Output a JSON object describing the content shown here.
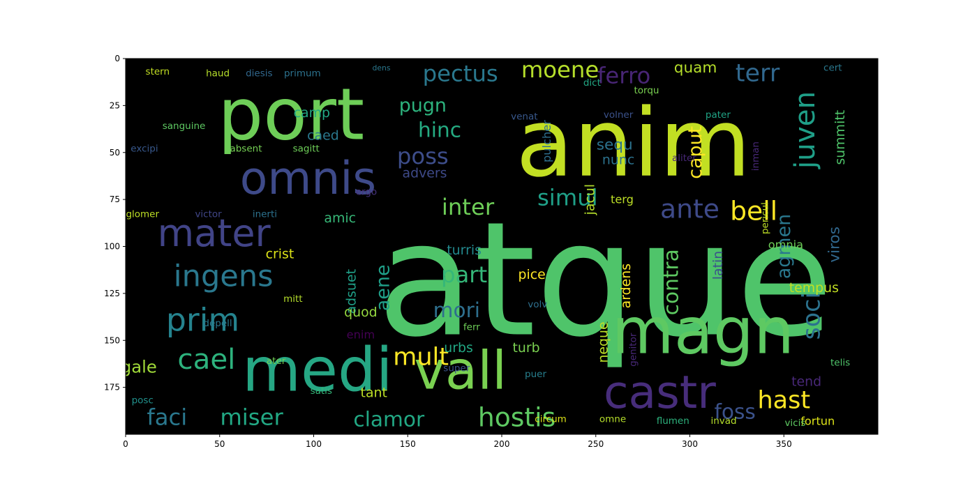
{
  "chart_data": {
    "type": "image",
    "x": {
      "lim": [
        0,
        400
      ],
      "ticks": [
        0,
        50,
        100,
        150,
        200,
        250,
        300,
        350
      ]
    },
    "y": {
      "lim": [
        0,
        200
      ],
      "inverted": true,
      "ticks": [
        0,
        25,
        50,
        75,
        100,
        125,
        150,
        175
      ]
    },
    "background": "#000000",
    "colormap": "viridis",
    "words": [
      {
        "text": "atque",
        "x": 255,
        "y": 118,
        "size": 84,
        "color": "#4fc46a"
      },
      {
        "text": "anim",
        "x": 270,
        "y": 45,
        "size": 50,
        "color": "#c2df23"
      },
      {
        "text": "port",
        "x": 88,
        "y": 30,
        "size": 38,
        "color": "#6ece58"
      },
      {
        "text": "medi",
        "x": 102,
        "y": 166,
        "size": 32,
        "color": "#26a784"
      },
      {
        "text": "magn",
        "x": 307,
        "y": 145,
        "size": 34,
        "color": "#5ec962"
      },
      {
        "text": "vall",
        "x": 178,
        "y": 166,
        "size": 28,
        "color": "#7ad151"
      },
      {
        "text": "castr",
        "x": 284,
        "y": 178,
        "size": 24,
        "color": "#472d7b"
      },
      {
        "text": "omnis",
        "x": 97,
        "y": 64,
        "size": 24,
        "color": "#3e4a89"
      },
      {
        "text": "mater",
        "x": 47,
        "y": 93,
        "size": 20,
        "color": "#414487"
      },
      {
        "text": "ingens",
        "x": 52,
        "y": 116,
        "size": 16,
        "color": "#2a788e"
      },
      {
        "text": "prim",
        "x": 41,
        "y": 139,
        "size": 17,
        "color": "#25838e"
      },
      {
        "text": "cael",
        "x": 43,
        "y": 160,
        "size": 15,
        "color": "#2db27d"
      },
      {
        "text": "faci",
        "x": 22,
        "y": 191,
        "size": 12,
        "color": "#2a788e"
      },
      {
        "text": "miser",
        "x": 67,
        "y": 191,
        "size": 12,
        "color": "#22a884"
      },
      {
        "text": "gale",
        "x": 7,
        "y": 164,
        "size": 9,
        "color": "#a0da39"
      },
      {
        "text": "posc",
        "x": 9,
        "y": 182,
        "size": 5,
        "color": "#21918c"
      },
      {
        "text": "glomer",
        "x": 9,
        "y": 83,
        "size": 5,
        "color": "#bddf26"
      },
      {
        "text": "victor",
        "x": 44,
        "y": 83,
        "size": 5,
        "color": "#404688"
      },
      {
        "text": "stern",
        "x": 17,
        "y": 7,
        "size": 5,
        "color": "#c2df23"
      },
      {
        "text": "haud",
        "x": 49,
        "y": 8,
        "size": 5,
        "color": "#b5de2b"
      },
      {
        "text": "diesis",
        "x": 71,
        "y": 8,
        "size": 5,
        "color": "#31688e"
      },
      {
        "text": "primum",
        "x": 94,
        "y": 8,
        "size": 5,
        "color": "#2c728e"
      },
      {
        "text": "sanguine",
        "x": 31,
        "y": 36,
        "size": 5,
        "color": "#5ec962"
      },
      {
        "text": "excipi",
        "x": 10,
        "y": 48,
        "size": 5,
        "color": "#38588c"
      },
      {
        "text": "absent",
        "x": 64,
        "y": 48,
        "size": 5,
        "color": "#75d054"
      },
      {
        "text": "sagitt",
        "x": 96,
        "y": 48,
        "size": 5,
        "color": "#6ece58"
      },
      {
        "text": "inerti",
        "x": 74,
        "y": 83,
        "size": 5,
        "color": "#2c728e"
      },
      {
        "text": "amic",
        "x": 114,
        "y": 85,
        "size": 7,
        "color": "#37b878"
      },
      {
        "text": "ergo",
        "x": 128,
        "y": 71,
        "size": 5,
        "color": "#46337e"
      },
      {
        "text": "caed",
        "x": 105,
        "y": 41,
        "size": 7,
        "color": "#2a788e"
      },
      {
        "text": "camp",
        "x": 99,
        "y": 29,
        "size": 7,
        "color": "#22a884"
      },
      {
        "text": "crist",
        "x": 82,
        "y": 104,
        "size": 7,
        "color": "#dde318"
      },
      {
        "text": "adsuet",
        "x": 120,
        "y": 124,
        "size": 7,
        "color": "#1fa088",
        "rotate": -90
      },
      {
        "text": "aene",
        "x": 137,
        "y": 122,
        "size": 10,
        "color": "#1f9f88",
        "rotate": -90
      },
      {
        "text": "quod",
        "x": 125,
        "y": 135,
        "size": 7,
        "color": "#95d840"
      },
      {
        "text": "enim",
        "x": 125,
        "y": 147,
        "size": 6,
        "color": "#440154"
      },
      {
        "text": "ater",
        "x": 80,
        "y": 161,
        "size": 5,
        "color": "#75d054"
      },
      {
        "text": "depell",
        "x": 49,
        "y": 141,
        "size": 5,
        "color": "#2a788e"
      },
      {
        "text": "mitt",
        "x": 89,
        "y": 128,
        "size": 5,
        "color": "#b5de2b"
      },
      {
        "text": "satis",
        "x": 104,
        "y": 177,
        "size": 5,
        "color": "#35b779"
      },
      {
        "text": "tant",
        "x": 132,
        "y": 178,
        "size": 7,
        "color": "#bddf26"
      },
      {
        "text": "mult",
        "x": 157,
        "y": 159,
        "size": 13,
        "color": "#fde725"
      },
      {
        "text": "clamor",
        "x": 140,
        "y": 192,
        "size": 11,
        "color": "#22a884"
      },
      {
        "text": "hostis",
        "x": 208,
        "y": 191,
        "size": 14,
        "color": "#5ec962"
      },
      {
        "text": "urbs",
        "x": 177,
        "y": 154,
        "size": 7,
        "color": "#22a884"
      },
      {
        "text": "super",
        "x": 176,
        "y": 165,
        "size": 5,
        "color": "#3b528b"
      },
      {
        "text": "ferr",
        "x": 184,
        "y": 143,
        "size": 5,
        "color": "#6ece58"
      },
      {
        "text": "turb",
        "x": 213,
        "y": 154,
        "size": 7,
        "color": "#7ad151"
      },
      {
        "text": "puer",
        "x": 218,
        "y": 168,
        "size": 5,
        "color": "#277f8e"
      },
      {
        "text": "circum",
        "x": 226,
        "y": 192,
        "size": 5,
        "color": "#dde318"
      },
      {
        "text": "part",
        "x": 180,
        "y": 115,
        "size": 12,
        "color": "#35b779"
      },
      {
        "text": "mori",
        "x": 176,
        "y": 134,
        "size": 11,
        "color": "#2e6f8e"
      },
      {
        "text": "turris",
        "x": 180,
        "y": 102,
        "size": 7,
        "color": "#23898e"
      },
      {
        "text": "pice",
        "x": 216,
        "y": 115,
        "size": 7,
        "color": "#fde725"
      },
      {
        "text": "volv",
        "x": 219,
        "y": 131,
        "size": 5,
        "color": "#2e6f8e"
      },
      {
        "text": "inter",
        "x": 182,
        "y": 79,
        "size": 12,
        "color": "#6ece58"
      },
      {
        "text": "poss",
        "x": 158,
        "y": 52,
        "size": 12,
        "color": "#3d4d8a"
      },
      {
        "text": "hinc",
        "x": 167,
        "y": 38,
        "size": 11,
        "color": "#25ab82"
      },
      {
        "text": "pugn",
        "x": 158,
        "y": 25,
        "size": 10,
        "color": "#2db27d"
      },
      {
        "text": "pectus",
        "x": 178,
        "y": 8,
        "size": 12,
        "color": "#2a788e"
      },
      {
        "text": "moene",
        "x": 231,
        "y": 6,
        "size": 12,
        "color": "#b5de2b"
      },
      {
        "text": "advers",
        "x": 159,
        "y": 61,
        "size": 7,
        "color": "#3e4a89"
      },
      {
        "text": "simul",
        "x": 235,
        "y": 74,
        "size": 12,
        "color": "#1fa088"
      },
      {
        "text": "terg",
        "x": 264,
        "y": 75,
        "size": 6,
        "color": "#bddf26"
      },
      {
        "text": "sequ",
        "x": 260,
        "y": 46,
        "size": 8,
        "color": "#2c728e"
      },
      {
        "text": "nunc",
        "x": 262,
        "y": 54,
        "size": 7,
        "color": "#2c728e"
      },
      {
        "text": "volner",
        "x": 262,
        "y": 30,
        "size": 5,
        "color": "#3b528b"
      },
      {
        "text": "pulcher",
        "x": 224,
        "y": 44,
        "size": 6,
        "color": "#2e6f8e",
        "rotate": -90
      },
      {
        "text": "jacul",
        "x": 247,
        "y": 75,
        "size": 7,
        "color": "#b5de2b",
        "rotate": -90
      },
      {
        "text": "ferro",
        "x": 265,
        "y": 9,
        "size": 12,
        "color": "#482575"
      },
      {
        "text": "caput",
        "x": 303,
        "y": 50,
        "size": 10,
        "color": "#fde725",
        "rotate": -90
      },
      {
        "text": "ante",
        "x": 300,
        "y": 80,
        "size": 14,
        "color": "#3e4a89"
      },
      {
        "text": "bell",
        "x": 334,
        "y": 81,
        "size": 14,
        "color": "#fde725"
      },
      {
        "text": "terr",
        "x": 336,
        "y": 8,
        "size": 13,
        "color": "#31688e"
      },
      {
        "text": "quam",
        "x": 303,
        "y": 5,
        "size": 8,
        "color": "#b5de2b"
      },
      {
        "text": "pater",
        "x": 315,
        "y": 30,
        "size": 5,
        "color": "#20a486"
      },
      {
        "text": "juven",
        "x": 361,
        "y": 38,
        "size": 15,
        "color": "#1f9f88",
        "rotate": -90
      },
      {
        "text": "summitt",
        "x": 380,
        "y": 42,
        "size": 7,
        "color": "#4fc46a",
        "rotate": -90
      },
      {
        "text": "agmen",
        "x": 350,
        "y": 100,
        "size": 10,
        "color": "#2a788e",
        "rotate": -90
      },
      {
        "text": "soci",
        "x": 365,
        "y": 137,
        "size": 13,
        "color": "#2c728e",
        "rotate": -90
      },
      {
        "text": "viros",
        "x": 377,
        "y": 99,
        "size": 8,
        "color": "#31688e",
        "rotate": -90
      },
      {
        "text": "contra",
        "x": 290,
        "y": 119,
        "size": 11,
        "color": "#5ec962",
        "rotate": -90
      },
      {
        "text": "ardens",
        "x": 266,
        "y": 121,
        "size": 7,
        "color": "#fde725",
        "rotate": -90
      },
      {
        "text": "neque",
        "x": 254,
        "y": 151,
        "size": 7,
        "color": "#bddf26",
        "rotate": -90
      },
      {
        "text": "latin",
        "x": 315,
        "y": 110,
        "size": 7,
        "color": "#3b528b",
        "rotate": -90
      },
      {
        "text": "tempus",
        "x": 366,
        "y": 122,
        "size": 7,
        "color": "#c2df23"
      },
      {
        "text": "omnia",
        "x": 351,
        "y": 99,
        "size": 6,
        "color": "#6ece58"
      },
      {
        "text": "foss",
        "x": 324,
        "y": 188,
        "size": 11,
        "color": "#3b528b"
      },
      {
        "text": "hast",
        "x": 350,
        "y": 182,
        "size": 13,
        "color": "#fde725"
      },
      {
        "text": "tend",
        "x": 362,
        "y": 172,
        "size": 7,
        "color": "#482878"
      },
      {
        "text": "telis",
        "x": 380,
        "y": 162,
        "size": 5,
        "color": "#4fc46a"
      },
      {
        "text": "fortun",
        "x": 368,
        "y": 193,
        "size": 6,
        "color": "#dde318"
      },
      {
        "text": "vicis",
        "x": 356,
        "y": 194,
        "size": 5,
        "color": "#5ec962"
      },
      {
        "text": "flumen",
        "x": 291,
        "y": 193,
        "size": 5,
        "color": "#2db27d"
      },
      {
        "text": "invad",
        "x": 318,
        "y": 193,
        "size": 5,
        "color": "#b5de2b"
      },
      {
        "text": "omne",
        "x": 259,
        "y": 192,
        "size": 5,
        "color": "#b5de2b"
      },
      {
        "text": "genitor",
        "x": 270,
        "y": 155,
        "size": 5,
        "color": "#482878",
        "rotate": -90
      },
      {
        "text": "dict",
        "x": 248,
        "y": 13,
        "size": 5,
        "color": "#22a884"
      },
      {
        "text": "torqu",
        "x": 277,
        "y": 17,
        "size": 5,
        "color": "#7ad151"
      },
      {
        "text": "venat",
        "x": 212,
        "y": 31,
        "size": 5,
        "color": "#38588c"
      },
      {
        "text": "dens",
        "x": 136,
        "y": 5,
        "size": 4,
        "color": "#2a788e"
      },
      {
        "text": "cert",
        "x": 376,
        "y": 5,
        "size": 5,
        "color": "#2a788e"
      },
      {
        "text": "pericul",
        "x": 340,
        "y": 85,
        "size": 5,
        "color": "#bddf26",
        "rotate": -90
      },
      {
        "text": "inman",
        "x": 335,
        "y": 52,
        "size": 5,
        "color": "#482878",
        "rotate": -90
      },
      {
        "text": "aliter",
        "x": 297,
        "y": 53,
        "size": 5,
        "color": "#482878"
      }
    ]
  }
}
